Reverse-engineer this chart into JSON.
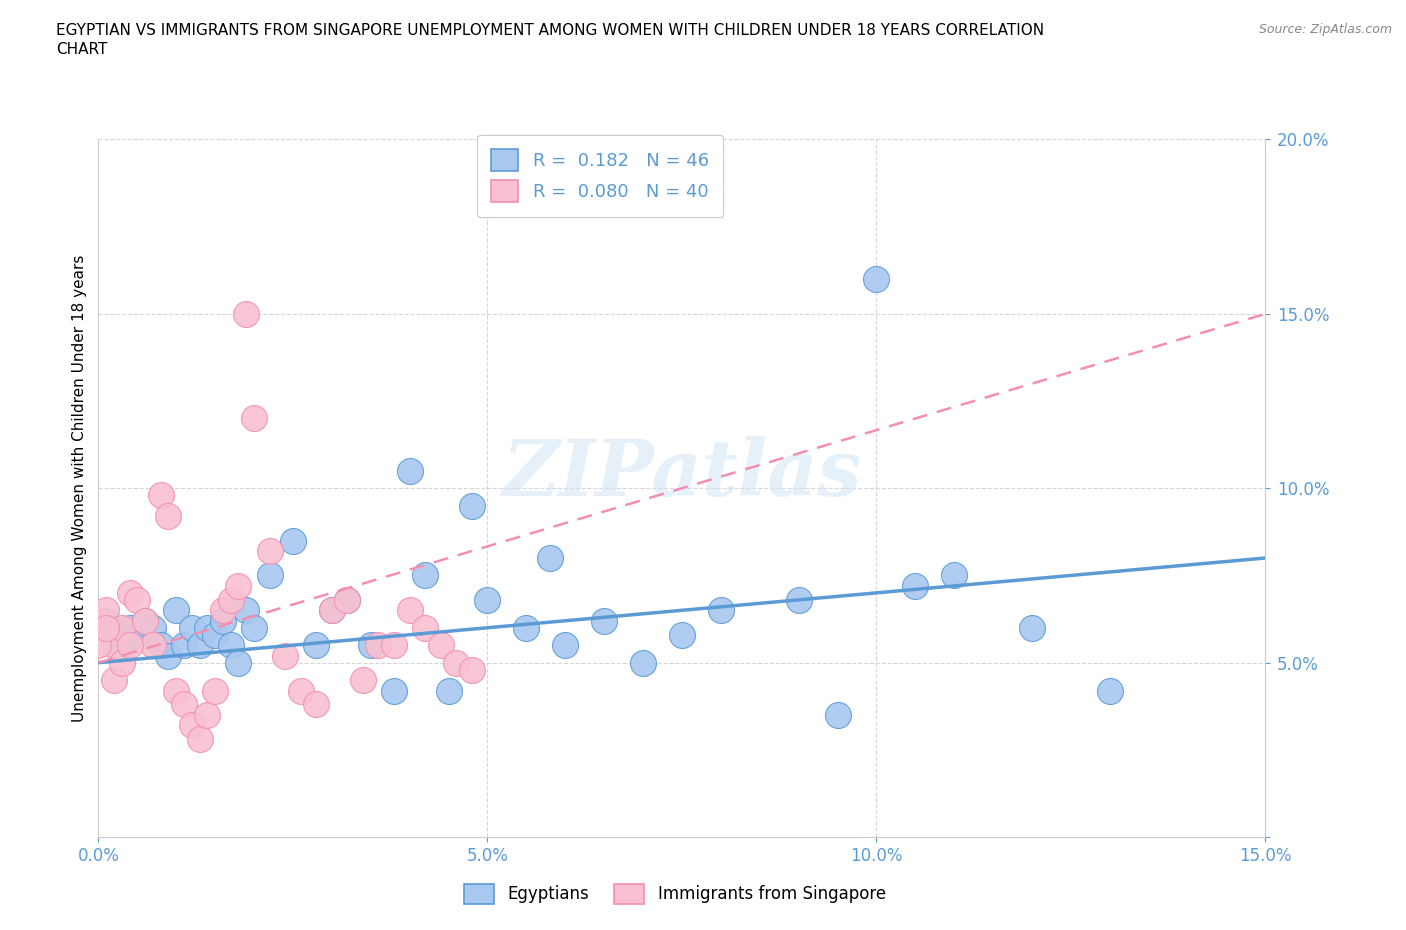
{
  "title_line1": "EGYPTIAN VS IMMIGRANTS FROM SINGAPORE UNEMPLOYMENT AMONG WOMEN WITH CHILDREN UNDER 18 YEARS CORRELATION",
  "title_line2": "CHART",
  "source": "Source: ZipAtlas.com",
  "ylabel": "Unemployment Among Women with Children Under 18 years",
  "xlim": [
    0.0,
    0.15
  ],
  "ylim": [
    0.0,
    0.2
  ],
  "xticks": [
    0.0,
    0.05,
    0.1,
    0.15
  ],
  "yticks": [
    0.0,
    0.05,
    0.1,
    0.15,
    0.2
  ],
  "watermark": "ZIPatlas",
  "blue_color": "#5b9bd5",
  "pink_color": "#f48fb1",
  "blue_scatter_face": "#a8c8f0",
  "pink_scatter_face": "#f8c0d0",
  "legend1_R": "0.182",
  "legend1_N": "46",
  "legend2_R": "0.080",
  "legend2_N": "40",
  "label1": "Egyptians",
  "label2": "Immigrants from Singapore",
  "egy_x": [
    0.001,
    0.002,
    0.003,
    0.004,
    0.005,
    0.006,
    0.007,
    0.008,
    0.009,
    0.01,
    0.011,
    0.012,
    0.013,
    0.014,
    0.015,
    0.016,
    0.017,
    0.018,
    0.019,
    0.02,
    0.022,
    0.025,
    0.028,
    0.03,
    0.032,
    0.035,
    0.038,
    0.042,
    0.045,
    0.05,
    0.055,
    0.058,
    0.06,
    0.065,
    0.07,
    0.075,
    0.08,
    0.09,
    0.095,
    0.1,
    0.105,
    0.11,
    0.12,
    0.13,
    0.04,
    0.048
  ],
  "egy_y": [
    0.062,
    0.058,
    0.055,
    0.06,
    0.058,
    0.062,
    0.06,
    0.055,
    0.052,
    0.065,
    0.055,
    0.06,
    0.055,
    0.06,
    0.058,
    0.062,
    0.055,
    0.05,
    0.065,
    0.06,
    0.075,
    0.085,
    0.055,
    0.065,
    0.068,
    0.055,
    0.042,
    0.075,
    0.042,
    0.068,
    0.06,
    0.08,
    0.055,
    0.062,
    0.05,
    0.058,
    0.065,
    0.068,
    0.035,
    0.16,
    0.072,
    0.075,
    0.06,
    0.042,
    0.105,
    0.095
  ],
  "sing_x": [
    0.0,
    0.001,
    0.002,
    0.003,
    0.004,
    0.005,
    0.006,
    0.007,
    0.008,
    0.009,
    0.01,
    0.011,
    0.012,
    0.013,
    0.014,
    0.015,
    0.016,
    0.017,
    0.018,
    0.019,
    0.02,
    0.022,
    0.024,
    0.026,
    0.028,
    0.03,
    0.032,
    0.034,
    0.036,
    0.038,
    0.04,
    0.042,
    0.044,
    0.046,
    0.048,
    0.0,
    0.001,
    0.002,
    0.003,
    0.004
  ],
  "sing_y": [
    0.062,
    0.065,
    0.055,
    0.06,
    0.07,
    0.068,
    0.062,
    0.055,
    0.098,
    0.092,
    0.042,
    0.038,
    0.032,
    0.028,
    0.035,
    0.042,
    0.065,
    0.068,
    0.072,
    0.15,
    0.12,
    0.082,
    0.052,
    0.042,
    0.038,
    0.065,
    0.068,
    0.045,
    0.055,
    0.055,
    0.065,
    0.06,
    0.055,
    0.05,
    0.048,
    0.055,
    0.06,
    0.045,
    0.05,
    0.055
  ]
}
